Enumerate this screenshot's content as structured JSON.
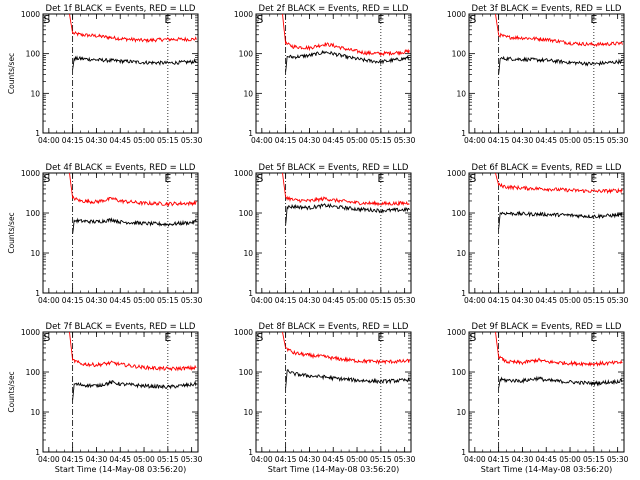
{
  "chart_data": [
    {
      "type": "line",
      "title": "Det 1f BLACK = Events, RED = LLD",
      "ylabel": "Counts/sec",
      "xlabel": "",
      "yscale": "log",
      "ylim": [
        1,
        1000
      ],
      "yticks": [
        "1",
        "10",
        "100",
        "1000"
      ],
      "xticks": [
        "04:00",
        "04:15",
        "04:30",
        "04:45",
        "05:00",
        "05:15",
        "05:30"
      ],
      "markers": {
        "S": "04:00",
        "E": "05:15"
      },
      "dashdot_line": "04:15",
      "dotted_line": "05:15",
      "series": [
        {
          "color": "#ff0000",
          "x": [
            "04:13",
            "04:15",
            "04:20",
            "04:30",
            "04:45",
            "05:00",
            "05:15",
            "05:30",
            "05:33"
          ],
          "values": [
            1000,
            330,
            300,
            280,
            240,
            215,
            230,
            230,
            235
          ]
        },
        {
          "color": "#000000",
          "x": [
            "04:15",
            "04:16",
            "04:20",
            "04:30",
            "04:45",
            "05:00",
            "05:15",
            "05:30",
            "05:33"
          ],
          "values": [
            40,
            75,
            75,
            70,
            65,
            60,
            58,
            62,
            65
          ]
        }
      ]
    },
    {
      "type": "line",
      "title": "Det 2f BLACK = Events, RED = LLD",
      "ylabel": "",
      "xlabel": "",
      "yscale": "log",
      "ylim": [
        1,
        1000
      ],
      "yticks": [
        "1",
        "10",
        "100",
        "1000"
      ],
      "xticks": [
        "04:00",
        "04:15",
        "04:30",
        "04:45",
        "05:00",
        "05:15",
        "05:30"
      ],
      "markers": {
        "S": "04:00",
        "E": "05:15"
      },
      "dashdot_line": "04:15",
      "dotted_line": "05:15",
      "series": [
        {
          "color": "#ff0000",
          "x": [
            "04:13",
            "04:15",
            "04:20",
            "04:30",
            "04:40",
            "04:45",
            "04:55",
            "05:05",
            "05:15",
            "05:30",
            "05:33"
          ],
          "values": [
            1000,
            180,
            150,
            140,
            175,
            160,
            125,
            105,
            100,
            110,
            115
          ]
        },
        {
          "color": "#000000",
          "x": [
            "04:15",
            "04:16",
            "04:20",
            "04:30",
            "04:40",
            "04:45",
            "04:55",
            "05:05",
            "05:15",
            "05:30",
            "05:33"
          ],
          "values": [
            35,
            85,
            82,
            90,
            110,
            100,
            80,
            68,
            62,
            75,
            80
          ]
        }
      ]
    },
    {
      "type": "line",
      "title": "Det 3f BLACK = Events, RED = LLD",
      "ylabel": "",
      "xlabel": "",
      "yscale": "log",
      "ylim": [
        1,
        1000
      ],
      "yticks": [
        "1",
        "10",
        "100",
        "1000"
      ],
      "xticks": [
        "04:00",
        "04:15",
        "04:30",
        "04:45",
        "05:00",
        "05:15",
        "05:30"
      ],
      "markers": {
        "S": "04:00",
        "E": "05:15"
      },
      "dashdot_line": "04:15",
      "dotted_line": "05:15",
      "series": [
        {
          "color": "#ff0000",
          "x": [
            "04:13",
            "04:15",
            "04:20",
            "04:30",
            "04:45",
            "05:00",
            "05:15",
            "05:30",
            "05:33"
          ],
          "values": [
            1000,
            300,
            260,
            250,
            230,
            185,
            170,
            180,
            185
          ]
        },
        {
          "color": "#000000",
          "x": [
            "04:15",
            "04:16",
            "04:20",
            "04:30",
            "04:45",
            "05:00",
            "05:15",
            "05:30",
            "05:33"
          ],
          "values": [
            30,
            75,
            75,
            72,
            68,
            60,
            55,
            62,
            65
          ]
        }
      ]
    },
    {
      "type": "line",
      "title": "Det 4f BLACK = Events, RED = LLD",
      "ylabel": "Counts/sec",
      "xlabel": "",
      "yscale": "log",
      "ylim": [
        1,
        1000
      ],
      "yticks": [
        "1",
        "10",
        "100",
        "1000"
      ],
      "xticks": [
        "04:00",
        "04:15",
        "04:30",
        "04:45",
        "05:00",
        "05:15",
        "05:30"
      ],
      "markers": {
        "S": "04:00",
        "E": "05:15"
      },
      "dashdot_line": "04:15",
      "dotted_line": "05:15",
      "series": [
        {
          "color": "#ff0000",
          "x": [
            "04:13",
            "04:15",
            "04:20",
            "04:30",
            "04:40",
            "04:45",
            "05:00",
            "05:15",
            "05:30",
            "05:33"
          ],
          "values": [
            1000,
            240,
            200,
            190,
            230,
            200,
            175,
            170,
            175,
            180
          ]
        },
        {
          "color": "#000000",
          "x": [
            "04:15",
            "04:16",
            "04:20",
            "04:30",
            "04:40",
            "04:45",
            "05:00",
            "05:15",
            "05:30",
            "05:33"
          ],
          "values": [
            30,
            65,
            63,
            60,
            68,
            60,
            55,
            52,
            58,
            62
          ]
        }
      ]
    },
    {
      "type": "line",
      "title": "Det 5f BLACK = Events, RED = LLD",
      "ylabel": "",
      "xlabel": "",
      "yscale": "log",
      "ylim": [
        1,
        1000
      ],
      "yticks": [
        "1",
        "10",
        "100",
        "1000"
      ],
      "xticks": [
        "04:00",
        "04:15",
        "04:30",
        "04:45",
        "05:00",
        "05:15",
        "05:30"
      ],
      "markers": {
        "S": "04:00",
        "E": "05:15"
      },
      "dashdot_line": "04:15",
      "dotted_line": "05:15",
      "series": [
        {
          "color": "#ff0000",
          "x": [
            "04:13",
            "04:15",
            "04:20",
            "04:30",
            "04:40",
            "04:45",
            "05:00",
            "05:15",
            "05:30",
            "05:33"
          ],
          "values": [
            1000,
            250,
            210,
            200,
            230,
            210,
            180,
            170,
            175,
            180
          ]
        },
        {
          "color": "#000000",
          "x": [
            "04:15",
            "04:16",
            "04:20",
            "04:30",
            "04:40",
            "04:45",
            "05:00",
            "05:15",
            "05:30",
            "05:33"
          ],
          "values": [
            50,
            140,
            145,
            135,
            155,
            145,
            125,
            115,
            120,
            125
          ]
        }
      ]
    },
    {
      "type": "line",
      "title": "Det 6f BLACK = Events, RED = LLD",
      "ylabel": "",
      "xlabel": "",
      "yscale": "log",
      "ylim": [
        1,
        1000
      ],
      "yticks": [
        "1",
        "10",
        "100",
        "1000"
      ],
      "xticks": [
        "04:00",
        "04:15",
        "04:30",
        "04:45",
        "05:00",
        "05:15",
        "05:30"
      ],
      "markers": {
        "S": "04:00",
        "E": "05:15"
      },
      "dashdot_line": "04:15",
      "dotted_line": "05:15",
      "series": [
        {
          "color": "#ff0000",
          "x": [
            "04:13",
            "04:15",
            "04:20",
            "04:30",
            "04:45",
            "05:00",
            "05:15",
            "05:30",
            "05:33"
          ],
          "values": [
            1000,
            500,
            450,
            420,
            400,
            370,
            350,
            360,
            370
          ]
        },
        {
          "color": "#000000",
          "x": [
            "04:15",
            "04:16",
            "04:20",
            "04:30",
            "04:45",
            "05:00",
            "05:15",
            "05:30",
            "05:33"
          ],
          "values": [
            40,
            100,
            98,
            95,
            92,
            88,
            82,
            88,
            92
          ]
        }
      ]
    },
    {
      "type": "line",
      "title": "Det 7f BLACK = Events, RED = LLD",
      "ylabel": "Counts/sec",
      "xlabel": "Start Time (14-May-08 03:56:20)",
      "yscale": "log",
      "ylim": [
        1,
        1000
      ],
      "yticks": [
        "1",
        "10",
        "100",
        "1000"
      ],
      "xticks": [
        "04:00",
        "04:15",
        "04:30",
        "04:45",
        "05:00",
        "05:15",
        "05:30"
      ],
      "markers": {
        "S": "04:00",
        "E": "05:15"
      },
      "dashdot_line": "04:15",
      "dotted_line": "05:15",
      "series": [
        {
          "color": "#ff0000",
          "x": [
            "04:13",
            "04:15",
            "04:20",
            "04:30",
            "04:40",
            "04:45",
            "05:00",
            "05:15",
            "05:30",
            "05:33"
          ],
          "values": [
            1000,
            200,
            160,
            150,
            170,
            155,
            130,
            120,
            125,
            130
          ]
        },
        {
          "color": "#000000",
          "x": [
            "04:15",
            "04:16",
            "04:20",
            "04:30",
            "04:40",
            "04:45",
            "05:00",
            "05:15",
            "05:30",
            "05:33"
          ],
          "values": [
            20,
            50,
            48,
            45,
            55,
            50,
            45,
            42,
            48,
            52
          ]
        }
      ]
    },
    {
      "type": "line",
      "title": "Det 8f BLACK = Events, RED = LLD",
      "ylabel": "",
      "xlabel": "Start Time (14-May-08 03:56:20)",
      "yscale": "log",
      "ylim": [
        1,
        1000
      ],
      "yticks": [
        "1",
        "10",
        "100",
        "1000"
      ],
      "xticks": [
        "04:00",
        "04:15",
        "04:30",
        "04:45",
        "05:00",
        "05:15",
        "05:30"
      ],
      "markers": {
        "S": "04:00",
        "E": "05:15"
      },
      "dashdot_line": "04:15",
      "dotted_line": "05:15",
      "series": [
        {
          "color": "#ff0000",
          "x": [
            "04:13",
            "04:15",
            "04:20",
            "04:30",
            "04:40",
            "04:45",
            "05:00",
            "05:15",
            "05:30",
            "05:33"
          ],
          "values": [
            1000,
            400,
            300,
            260,
            240,
            220,
            190,
            180,
            185,
            190
          ]
        },
        {
          "color": "#000000",
          "x": [
            "04:15",
            "04:16",
            "04:20",
            "04:30",
            "04:40",
            "04:45",
            "05:00",
            "05:15",
            "05:30",
            "05:33"
          ],
          "values": [
            40,
            110,
            90,
            80,
            75,
            70,
            62,
            58,
            62,
            66
          ]
        }
      ]
    },
    {
      "type": "line",
      "title": "Det 9f BLACK = Events, RED = LLD",
      "ylabel": "",
      "xlabel": "Start Time (14-May-08 03:56:20)",
      "yscale": "log",
      "ylim": [
        1,
        1000
      ],
      "yticks": [
        "1",
        "10",
        "100",
        "1000"
      ],
      "xticks": [
        "04:00",
        "04:15",
        "04:30",
        "04:45",
        "05:00",
        "05:15",
        "05:30"
      ],
      "markers": {
        "S": "04:00",
        "E": "05:15"
      },
      "dashdot_line": "04:15",
      "dotted_line": "05:15",
      "series": [
        {
          "color": "#ff0000",
          "x": [
            "04:13",
            "04:15",
            "04:20",
            "04:30",
            "04:40",
            "04:45",
            "05:00",
            "05:15",
            "05:30",
            "05:33"
          ],
          "values": [
            1000,
            240,
            180,
            170,
            200,
            180,
            165,
            160,
            170,
            175
          ]
        },
        {
          "color": "#000000",
          "x": [
            "04:15",
            "04:16",
            "04:20",
            "04:30",
            "04:40",
            "04:45",
            "05:00",
            "05:15",
            "05:30",
            "05:33"
          ],
          "values": [
            40,
            65,
            62,
            60,
            70,
            62,
            56,
            52,
            58,
            62
          ]
        }
      ]
    }
  ]
}
